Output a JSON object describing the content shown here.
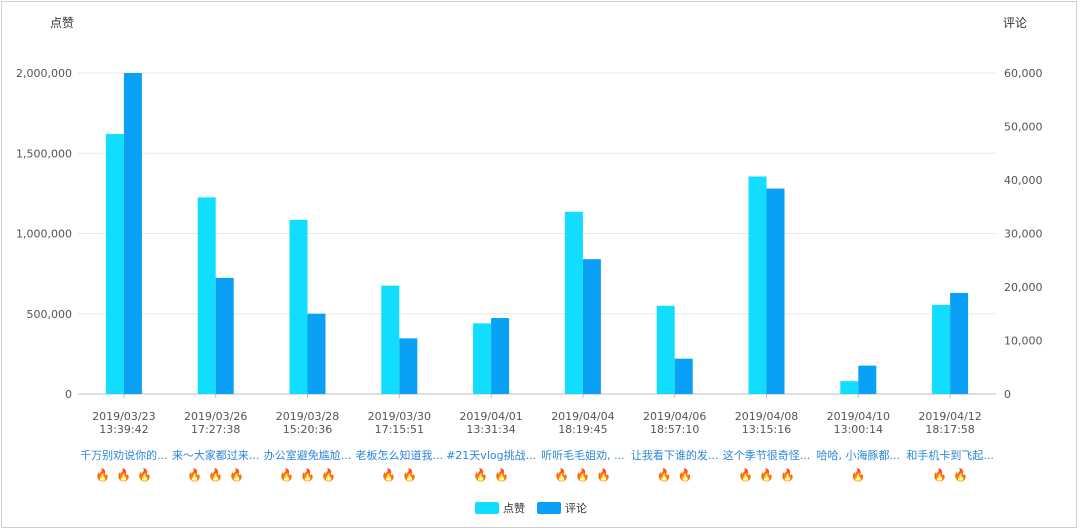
{
  "chart_data": {
    "type": "bar",
    "y_left_label": "点赞",
    "y_right_label": "评论",
    "y_left_ticks": [
      "0",
      "500,000",
      "1,000,000",
      "1,500,000",
      "2,000,000"
    ],
    "y_right_ticks": [
      "0",
      "10,000",
      "20,000",
      "30,000",
      "40,000",
      "50,000",
      "60,000"
    ],
    "ylim_left": [
      0,
      2000000
    ],
    "ylim_right": [
      0,
      60000
    ],
    "grid": true,
    "legend_position": "bottom-center",
    "categories": [
      {
        "date": "2019/03/23",
        "time": "13:39:42",
        "title": "千万别劝说你的...",
        "flames": 3
      },
      {
        "date": "2019/03/26",
        "time": "17:27:38",
        "title": "来～大家都过来...",
        "flames": 3
      },
      {
        "date": "2019/03/28",
        "time": "15:20:36",
        "title": "办公室避免尴尬...",
        "flames": 3
      },
      {
        "date": "2019/03/30",
        "time": "17:15:51",
        "title": "老板怎么知道我...",
        "flames": 2
      },
      {
        "date": "2019/04/01",
        "time": "13:31:34",
        "title": "#21天vlog挑战...",
        "flames": 2
      },
      {
        "date": "2019/04/04",
        "time": "18:19:45",
        "title": "听听毛毛姐劝, ...",
        "flames": 3
      },
      {
        "date": "2019/04/06",
        "time": "18:57:10",
        "title": "让我看下谁的发...",
        "flames": 2
      },
      {
        "date": "2019/04/08",
        "time": "13:15:16",
        "title": "这个季节很奇怪...",
        "flames": 3
      },
      {
        "date": "2019/04/10",
        "time": "13:00:14",
        "title": "哈哈, 小海豚都...",
        "flames": 1
      },
      {
        "date": "2019/04/12",
        "time": "18:17:58",
        "title": "和手机卡到飞起...",
        "flames": 2
      }
    ],
    "series": [
      {
        "name": "点赞",
        "axis": "left",
        "color": "#11ddff",
        "values": [
          1620000,
          1225000,
          1085000,
          675000,
          440000,
          1135000,
          550000,
          1355000,
          80000,
          555000
        ]
      },
      {
        "name": "评论",
        "axis": "right",
        "color": "#0aa0f5",
        "values": [
          60000,
          21700,
          15000,
          10400,
          14200,
          25200,
          6600,
          38400,
          5300,
          18900
        ]
      }
    ],
    "flame_icon": "flame-icon",
    "flame_color": "#e8553a"
  }
}
